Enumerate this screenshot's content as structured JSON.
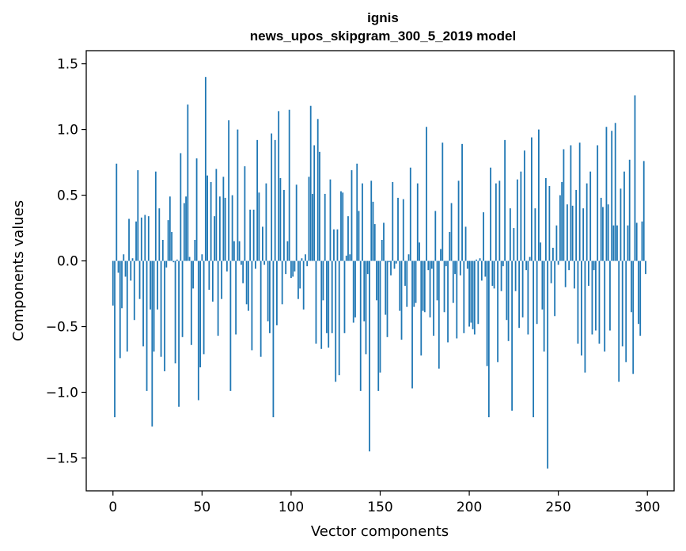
{
  "chart_data": {
    "type": "bar",
    "title": "ignis",
    "subtitle": "news_upos_skipgram_300_5_2019 model",
    "xlabel": "Vector components",
    "ylabel": "Components values",
    "xlim": [
      -15,
      315
    ],
    "ylim": [
      -1.75,
      1.6
    ],
    "xticks": [
      0,
      50,
      100,
      150,
      200,
      250,
      300
    ],
    "yticks": [
      -1.5,
      -1.0,
      -0.5,
      0.0,
      0.5,
      1.0,
      1.5
    ],
    "ytick_labels": [
      "−1.5",
      "−1.0",
      "−0.5",
      "0.0",
      "0.5",
      "1.0",
      "1.5"
    ],
    "bar_color": "#1f77b4",
    "values": [
      -0.34,
      -1.19,
      0.74,
      -0.09,
      -0.74,
      -0.36,
      0.05,
      -0.12,
      -0.69,
      0.32,
      -0.15,
      0.02,
      -0.45,
      0.3,
      0.69,
      -0.29,
      0.33,
      -0.65,
      0.35,
      -0.99,
      0.34,
      -0.37,
      -1.26,
      -0.69,
      0.68,
      -0.37,
      0.4,
      -0.73,
      0.16,
      -0.84,
      -0.05,
      0.31,
      0.49,
      0.22,
      -0.01,
      -0.78,
      0.01,
      -1.11,
      0.82,
      -0.58,
      0.44,
      0.49,
      1.19,
      0.03,
      -0.64,
      -0.21,
      0.16,
      0.78,
      -1.06,
      -0.81,
      0.05,
      -0.71,
      1.4,
      0.65,
      -0.22,
      0.6,
      -0.31,
      0.34,
      0.7,
      -0.57,
      0.49,
      -0.29,
      0.64,
      0.48,
      -0.08,
      1.07,
      -0.99,
      0.5,
      0.15,
      -0.56,
      1.0,
      0.15,
      -0.03,
      -0.17,
      0.72,
      -0.33,
      -0.38,
      0.39,
      -0.68,
      0.39,
      -0.06,
      0.92,
      0.52,
      -0.73,
      0.26,
      -0.03,
      0.59,
      -0.46,
      -0.55,
      0.97,
      -1.19,
      0.92,
      -0.49,
      1.14,
      0.63,
      -0.33,
      0.54,
      -0.1,
      0.15,
      1.15,
      -0.13,
      -0.12,
      -0.08,
      0.58,
      -0.29,
      -0.21,
      0.02,
      -0.37,
      0.05,
      -0.04,
      0.64,
      1.18,
      0.51,
      0.88,
      -0.63,
      1.08,
      0.83,
      -0.67,
      -0.3,
      0.51,
      -0.55,
      -0.66,
      0.62,
      -0.55,
      0.24,
      -0.92,
      0.24,
      -0.87,
      0.53,
      0.52,
      -0.55,
      0.04,
      0.34,
      0.05,
      0.69,
      -0.47,
      -0.43,
      0.74,
      0.38,
      -0.99,
      0.59,
      -0.46,
      -0.71,
      -0.1,
      -1.45,
      0.61,
      0.45,
      0.28,
      -0.3,
      -0.99,
      -0.85,
      0.16,
      0.29,
      -0.41,
      -0.58,
      -0.01,
      -0.11,
      0.6,
      -0.06,
      -0.02,
      0.48,
      -0.38,
      -0.6,
      0.47,
      -0.19,
      -0.35,
      0.05,
      0.71,
      -0.97,
      -0.35,
      -0.32,
      0.59,
      0.14,
      -0.72,
      -0.38,
      -0.39,
      1.02,
      -0.07,
      -0.43,
      -0.06,
      -0.57,
      0.38,
      -0.3,
      -0.82,
      0.09,
      0.9,
      -0.39,
      -0.04,
      -0.62,
      0.22,
      0.44,
      -0.32,
      -0.1,
      -0.59,
      0.61,
      -0.11,
      0.89,
      -0.55,
      0.26,
      -0.06,
      -0.5,
      -0.47,
      -0.52,
      -0.56,
      0.01,
      -0.48,
      0.02,
      -0.15,
      0.37,
      -0.12,
      -0.8,
      -1.19,
      0.71,
      -0.19,
      -0.21,
      0.59,
      -0.77,
      0.61,
      -0.23,
      -0.04,
      0.92,
      -0.45,
      -0.61,
      0.4,
      -1.14,
      0.25,
      -0.23,
      0.62,
      -0.51,
      0.68,
      -0.43,
      0.84,
      -0.07,
      -0.56,
      0.03,
      0.94,
      -1.19,
      0.4,
      -0.48,
      1.0,
      0.14,
      -0.37,
      -0.69,
      0.63,
      -1.58,
      0.57,
      -0.17,
      0.1,
      -0.42,
      0.27,
      -0.03,
      0.5,
      0.6,
      0.85,
      -0.2,
      0.43,
      -0.07,
      0.88,
      0.42,
      -0.21,
      0.54,
      -0.63,
      0.9,
      -0.72,
      0.4,
      -0.85,
      0.59,
      -0.19,
      0.68,
      -0.56,
      -0.07,
      -0.53,
      0.88,
      -0.63,
      0.48,
      0.41,
      -0.69,
      1.02,
      0.43,
      -0.53,
      0.99,
      0.27,
      1.05,
      0.27,
      -0.92,
      0.55,
      -0.65,
      0.68,
      -0.77,
      0.27,
      0.77,
      -0.39,
      -0.86,
      1.26,
      0.29,
      -0.48,
      -0.57,
      0.3,
      0.76,
      -0.1
    ]
  }
}
